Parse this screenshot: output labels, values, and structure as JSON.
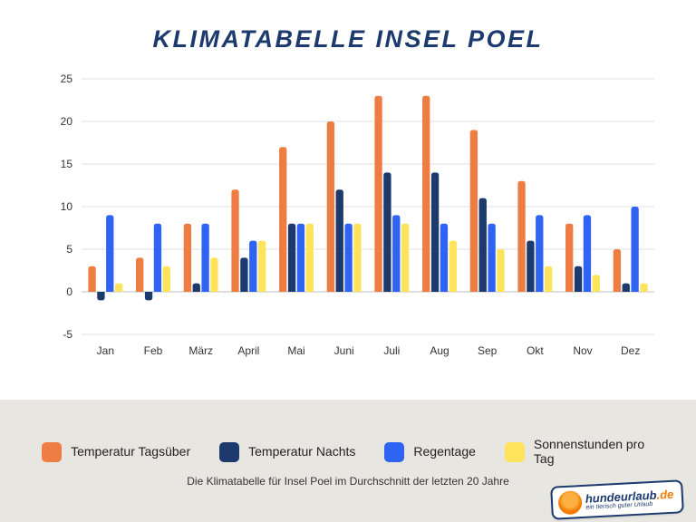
{
  "title": "KLIMATABELLE INSEL POEL",
  "chart": {
    "type": "bar-grouped",
    "categories": [
      "Jan",
      "Feb",
      "März",
      "April",
      "Mai",
      "Juni",
      "Juli",
      "Aug",
      "Sep",
      "Okt",
      "Nov",
      "Dez"
    ],
    "series": [
      {
        "key": "temp_day",
        "label": "Temperatur Tagsüber",
        "color": "#ee7d43",
        "values": [
          3,
          4,
          8,
          12,
          17,
          20,
          23,
          23,
          19,
          13,
          8,
          5
        ]
      },
      {
        "key": "temp_night",
        "label": "Temperatur Nachts",
        "color": "#1d3a6e",
        "values": [
          -1,
          -1,
          1,
          4,
          8,
          12,
          14,
          14,
          11,
          6,
          3,
          1
        ]
      },
      {
        "key": "rain_days",
        "label": "Regentage",
        "color": "#2f63f4",
        "values": [
          9,
          8,
          8,
          6,
          8,
          8,
          9,
          8,
          8,
          9,
          9,
          10
        ]
      },
      {
        "key": "sun_hours",
        "label": "Sonnenstunden pro Tag",
        "color": "#ffe35a",
        "values": [
          1,
          3,
          4,
          6,
          8,
          8,
          8,
          6,
          5,
          3,
          2,
          1
        ]
      }
    ],
    "ylim": [
      -5,
      25
    ],
    "ytick_step": 5,
    "bar_radius": 3,
    "group_gap_ratio": 0.28,
    "bar_gap_ratio": 0.12,
    "background_color": "#ffffff",
    "grid_color": "#e2e2e2",
    "zero_color": "#bfbfbf",
    "axis_fontsize": 12,
    "axis_color": "#333333"
  },
  "legend": {
    "items_from_series": true
  },
  "caption": "Die Klimatabelle für Insel Poel im Durchschnitt der letzten 20 Jahre",
  "strip_color": "#e8e6e1",
  "logo": {
    "main_left": "hundeurlaub",
    "main_right": ".de",
    "sub": "ein tierisch guter Urlaub"
  }
}
